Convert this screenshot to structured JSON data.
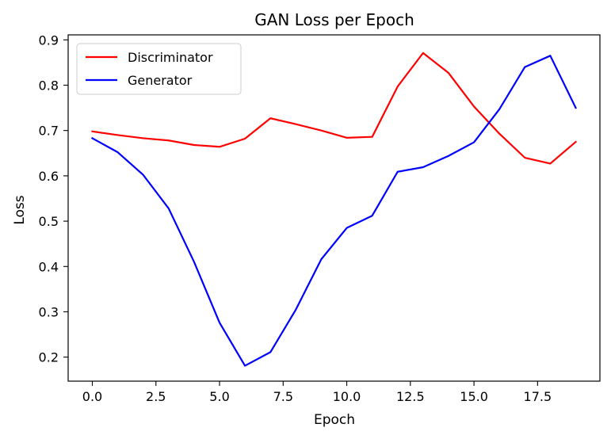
{
  "chart_data": {
    "type": "line",
    "title": "GAN Loss per Epoch",
    "xlabel": "Epoch",
    "ylabel": "Loss",
    "xlim": [
      -0.95,
      19.95
    ],
    "ylim": [
      0.147,
      0.911
    ],
    "xticks": [
      0.0,
      2.5,
      5.0,
      7.5,
      10.0,
      12.5,
      15.0,
      17.5
    ],
    "xtick_labels": [
      "0.0",
      "2.5",
      "5.0",
      "7.5",
      "10.0",
      "12.5",
      "15.0",
      "17.5"
    ],
    "yticks": [
      0.2,
      0.3,
      0.4,
      0.5,
      0.6,
      0.7,
      0.8,
      0.9
    ],
    "ytick_labels": [
      "0.2",
      "0.3",
      "0.4",
      "0.5",
      "0.6",
      "0.7",
      "0.8",
      "0.9"
    ],
    "grid": false,
    "legend_position": "top-left",
    "x": [
      0,
      1,
      2,
      3,
      4,
      5,
      6,
      7,
      8,
      9,
      10,
      11,
      12,
      13,
      14,
      15,
      16,
      17,
      18,
      19
    ],
    "series": [
      {
        "name": "Discriminator",
        "color": "#ff0000",
        "values": [
          0.698,
          0.69,
          0.683,
          0.678,
          0.668,
          0.664,
          0.682,
          0.727,
          0.714,
          0.7,
          0.684,
          0.686,
          0.797,
          0.871,
          0.827,
          0.753,
          0.693,
          0.64,
          0.627,
          0.675
        ]
      },
      {
        "name": "Generator",
        "color": "#0000ff",
        "values": [
          0.683,
          0.652,
          0.602,
          0.528,
          0.41,
          0.276,
          0.181,
          0.211,
          0.305,
          0.416,
          0.485,
          0.512,
          0.609,
          0.619,
          0.644,
          0.674,
          0.747,
          0.84,
          0.865,
          0.75
        ]
      }
    ]
  }
}
